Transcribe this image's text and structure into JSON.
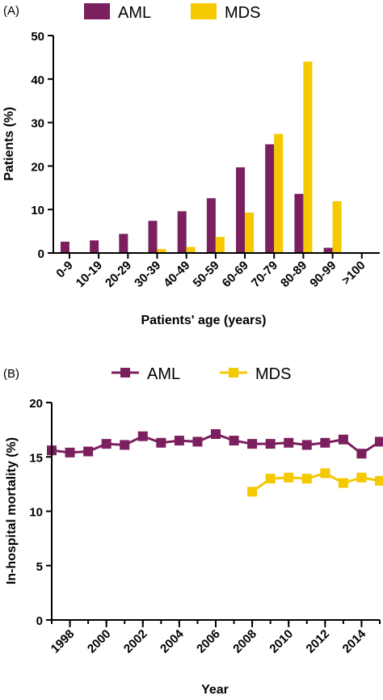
{
  "colors": {
    "aml": "#7b1f5e",
    "mds": "#f5c800",
    "axis": "#000000"
  },
  "chart_data": [
    {
      "type": "bar",
      "panel_label": "(A)",
      "categories": [
        "0-9",
        "10-19",
        "20-29",
        "30-39",
        "40-49",
        "50-59",
        "60-69",
        "70-79",
        "80-89",
        "90-99",
        ">100"
      ],
      "series": [
        {
          "name": "AML",
          "values": [
            2.6,
            2.9,
            4.4,
            7.4,
            9.6,
            12.6,
            19.7,
            25.0,
            13.6,
            1.2,
            0
          ]
        },
        {
          "name": "MDS",
          "values": [
            0,
            0,
            0,
            0.9,
            1.4,
            3.7,
            9.3,
            27.4,
            44.0,
            11.9,
            0
          ]
        }
      ],
      "title": "",
      "xlabel": "Patients' age (years)",
      "ylabel": "Patients (%)",
      "ylim": [
        0,
        50
      ],
      "yticks": [
        "0",
        "10",
        "20",
        "30",
        "40",
        "50"
      ],
      "grid": false,
      "legend": "top-center"
    },
    {
      "type": "line",
      "panel_label": "(B)",
      "series": [
        {
          "name": "AML",
          "x": [
            1997,
            1998,
            1999,
            2000,
            2001,
            2002,
            2003,
            2004,
            2005,
            2006,
            2007,
            2008,
            2009,
            2010,
            2011,
            2012,
            2013,
            2014,
            2015
          ],
          "values": [
            15.6,
            15.4,
            15.5,
            16.2,
            16.1,
            16.9,
            16.3,
            16.5,
            16.4,
            17.1,
            16.5,
            16.2,
            16.2,
            16.3,
            16.1,
            16.3,
            16.6,
            15.3,
            16.4
          ]
        },
        {
          "name": "MDS",
          "x": [
            2008,
            2009,
            2010,
            2011,
            2012,
            2013,
            2014,
            2015
          ],
          "values": [
            11.8,
            13.0,
            13.1,
            13.0,
            13.5,
            12.6,
            13.1,
            12.8
          ]
        }
      ],
      "title": "",
      "xlabel": "Year",
      "ylabel": "In-hospital mortality (%)",
      "xlim": [
        1997,
        2015
      ],
      "xticks": [
        "1998",
        "2000",
        "2002",
        "2004",
        "2006",
        "2008",
        "2010",
        "2012",
        "2014"
      ],
      "ylim": [
        0,
        20
      ],
      "yticks": [
        "0",
        "5",
        "10",
        "15",
        "20"
      ],
      "grid": false,
      "legend": "top-center"
    }
  ]
}
